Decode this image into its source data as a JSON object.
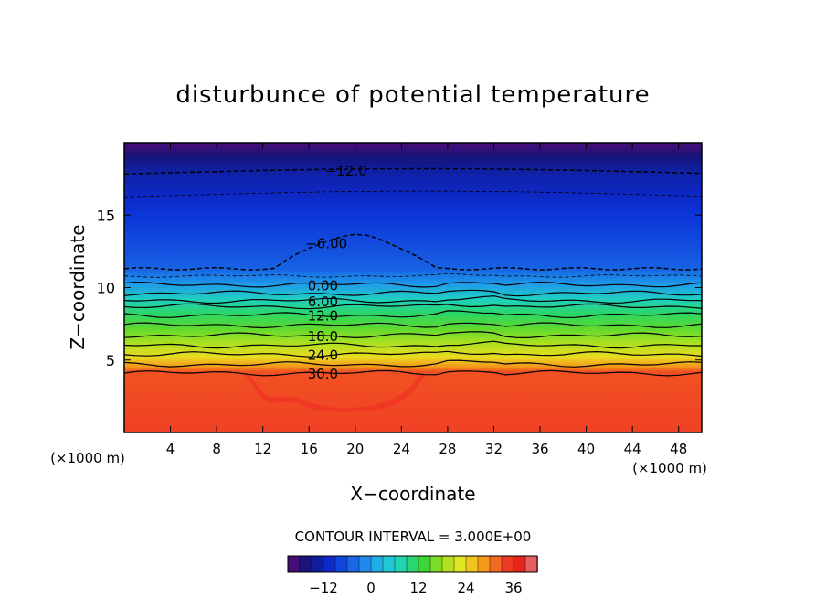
{
  "chart_data": {
    "type": "heatmap",
    "title": "disturbunce of potential temperature",
    "xlabel": "X−coordinate",
    "ylabel": "Z−coordinate",
    "x_unit": "(×1000 m)",
    "y_unit": "(×1000 m)",
    "xlim": [
      0,
      50
    ],
    "ylim": [
      0,
      20
    ],
    "x_ticks": [
      4,
      8,
      12,
      16,
      20,
      24,
      28,
      32,
      36,
      40,
      44,
      48
    ],
    "y_ticks": [
      5,
      10,
      15
    ],
    "contour_interval_text": "CONTOUR INTERVAL = 3.000E+00",
    "contour_interval": 3.0,
    "contour_labels": [
      {
        "text": "−12.0",
        "x": 19.2,
        "z": 18.1
      },
      {
        "text": "−6.00",
        "x": 17.5,
        "z": 13.1
      },
      {
        "text": "0.00",
        "x": 17.2,
        "z": 10.2
      },
      {
        "text": "6.00",
        "x": 17.2,
        "z": 9.1
      },
      {
        "text": "12.0",
        "x": 17.2,
        "z": 8.1
      },
      {
        "text": "18.0",
        "x": 17.2,
        "z": 6.7
      },
      {
        "text": "24.0",
        "x": 17.2,
        "z": 5.4
      },
      {
        "text": "30.0",
        "x": 17.2,
        "z": 4.1
      }
    ],
    "colorbar": {
      "min": -21,
      "max": 42,
      "tick_values": [
        -12,
        0,
        12,
        24,
        36
      ],
      "tick_labels": [
        "−12",
        "0",
        "12",
        "24",
        "36"
      ]
    },
    "field_description_levels": [
      {
        "z": 0,
        "value": 34
      },
      {
        "z": 4.2,
        "value": 33
      },
      {
        "z": 4.5,
        "value": 29
      },
      {
        "z": 5.2,
        "value": 24
      },
      {
        "z": 6.2,
        "value": 19
      },
      {
        "z": 7.2,
        "value": 15
      },
      {
        "z": 8.2,
        "value": 11
      },
      {
        "z": 9.2,
        "value": 6
      },
      {
        "z": 10.2,
        "value": 0
      },
      {
        "z": 11.3,
        "value": -5
      },
      {
        "z": 13.0,
        "value": -7
      },
      {
        "z": 15.0,
        "value": -9
      },
      {
        "z": 16.5,
        "value": -11
      },
      {
        "z": 18.0,
        "value": -13
      },
      {
        "z": 19.0,
        "value": -16
      },
      {
        "z": 20.0,
        "value": -20
      }
    ]
  }
}
